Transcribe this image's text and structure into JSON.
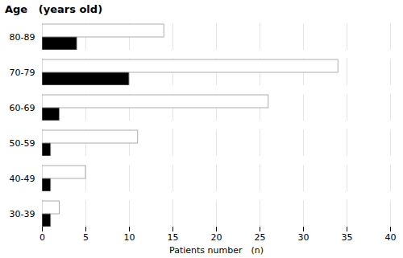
{
  "chart_data": {
    "type": "bar",
    "orientation": "horizontal",
    "title": "Age   (years old)",
    "xlabel": "Patients number　(n)",
    "categories": [
      "30-39",
      "40-49",
      "50-59",
      "60-69",
      "70-79",
      "80-89"
    ],
    "series": [
      {
        "color": "#ffffff",
        "values": [
          2,
          5,
          11,
          26,
          34,
          14
        ]
      },
      {
        "color": "#000000",
        "values": [
          1,
          1,
          1,
          2,
          10,
          4
        ]
      }
    ],
    "xlim": [
      0,
      40
    ],
    "xticks": [
      0,
      5,
      10,
      15,
      20,
      25,
      30,
      35,
      40
    ],
    "grid": true
  }
}
